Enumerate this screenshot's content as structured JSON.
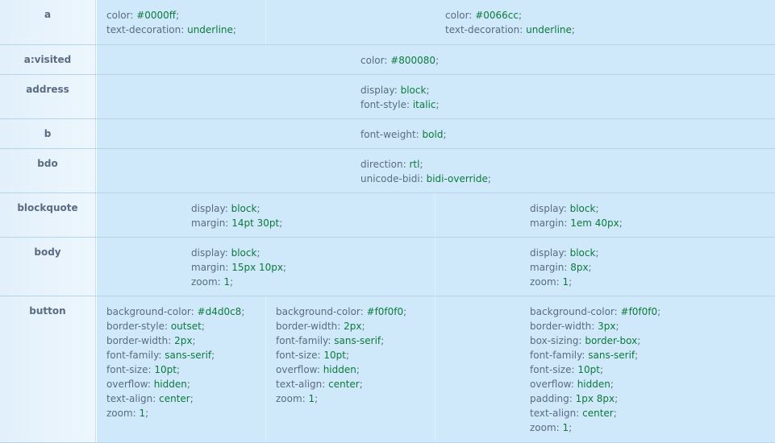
{
  "rows": [
    {
      "tag": "a",
      "cells": [
        [
          {
            "p": "color",
            "v": "#0000ff"
          },
          {
            "p": "text-decoration",
            "v": "underline"
          }
        ],
        [
          {
            "p": "color",
            "v": "#0066cc"
          },
          {
            "p": "text-decoration",
            "v": "underline"
          }
        ]
      ]
    },
    {
      "tag": "a:visited",
      "cells": [
        [
          {
            "p": "color",
            "v": "#800080"
          }
        ]
      ]
    },
    {
      "tag": "address",
      "cells": [
        [
          {
            "p": "display",
            "v": "block"
          },
          {
            "p": "font-style",
            "v": "italic"
          }
        ]
      ]
    },
    {
      "tag": "b",
      "cells": [
        [
          {
            "p": "font-weight",
            "v": "bold"
          }
        ]
      ]
    },
    {
      "tag": "bdo",
      "cells": [
        [
          {
            "p": "direction",
            "v": "rtl"
          },
          {
            "p": "unicode-bidi",
            "v": "bidi-override"
          }
        ]
      ]
    },
    {
      "tag": "blockquote",
      "cells": [
        [
          {
            "p": "display",
            "v": "block"
          },
          {
            "p": "margin",
            "v": "14pt 30pt"
          }
        ],
        [
          {
            "p": "display",
            "v": "block"
          },
          {
            "p": "margin",
            "v": "1em 40px"
          }
        ]
      ]
    },
    {
      "tag": "body",
      "cells": [
        [
          {
            "p": "display",
            "v": "block"
          },
          {
            "p": "margin",
            "v": "15px 10px"
          },
          {
            "p": "zoom",
            "v": "1"
          }
        ],
        [
          {
            "p": "display",
            "v": "block"
          },
          {
            "p": "margin",
            "v": "8px"
          },
          {
            "p": "zoom",
            "v": "1"
          }
        ]
      ]
    },
    {
      "tag": "button",
      "cells": [
        [
          {
            "p": "background-color",
            "v": "#d4d0c8"
          },
          {
            "p": "border-style",
            "v": "outset"
          },
          {
            "p": "border-width",
            "v": "2px"
          },
          {
            "p": "font-family",
            "v": "sans-serif"
          },
          {
            "p": "font-size",
            "v": "10pt"
          },
          {
            "p": "overflow",
            "v": "hidden"
          },
          {
            "p": "text-align",
            "v": "center"
          },
          {
            "p": "zoom",
            "v": "1"
          }
        ],
        [
          {
            "p": "background-color",
            "v": "#f0f0f0"
          },
          {
            "p": "border-width",
            "v": "2px"
          },
          {
            "p": "font-family",
            "v": "sans-serif"
          },
          {
            "p": "font-size",
            "v": "10pt"
          },
          {
            "p": "overflow",
            "v": "hidden"
          },
          {
            "p": "text-align",
            "v": "center"
          },
          {
            "p": "zoom",
            "v": "1"
          }
        ],
        [
          {
            "p": "background-color",
            "v": "#f0f0f0"
          },
          {
            "p": "border-width",
            "v": "3px"
          },
          {
            "p": "box-sizing",
            "v": "border-box"
          },
          {
            "p": "font-family",
            "v": "sans-serif"
          },
          {
            "p": "font-size",
            "v": "10pt"
          },
          {
            "p": "overflow",
            "v": "hidden"
          },
          {
            "p": "padding",
            "v": "1px 8px"
          },
          {
            "p": "text-align",
            "v": "center"
          },
          {
            "p": "zoom",
            "v": "1"
          }
        ]
      ]
    }
  ]
}
